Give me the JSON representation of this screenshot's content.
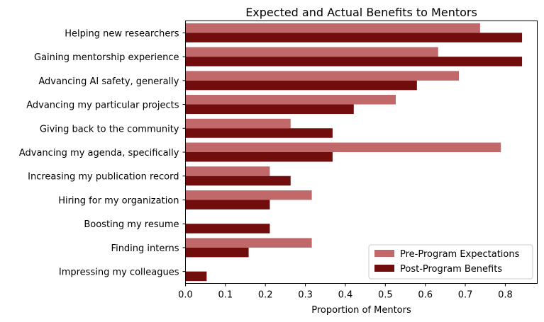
{
  "chart_data": {
    "type": "bar",
    "orientation": "horizontal",
    "title": "Expected and Actual Benefits to Mentors",
    "xlabel": "Proportion of Mentors",
    "ylabel": "",
    "xlim": [
      0.0,
      0.88
    ],
    "xticks": [
      "0.0",
      "0.1",
      "0.2",
      "0.3",
      "0.4",
      "0.5",
      "0.6",
      "0.7",
      "0.8"
    ],
    "categories": [
      "Helping new researchers",
      "Gaining mentorship experience",
      "Advancing AI safety, generally",
      "Advancing my particular projects",
      "Giving back to the community",
      "Advancing my agenda, specifically",
      "Increasing my publication record",
      "Hiring for my organization",
      "Boosting my resume",
      "Finding interns",
      "Impressing my colleagues"
    ],
    "series": [
      {
        "name": "Pre-Program Expectations",
        "color": "#c0686a",
        "values": [
          0.737,
          0.632,
          0.684,
          0.526,
          0.263,
          0.789,
          0.211,
          0.316,
          0.0,
          0.316,
          0.0
        ]
      },
      {
        "name": "Post-Program Benefits",
        "color": "#720d0e",
        "values": [
          0.842,
          0.842,
          0.579,
          0.421,
          0.368,
          0.368,
          0.263,
          0.211,
          0.211,
          0.158,
          0.053
        ]
      }
    ],
    "legend_position": "lower-right",
    "grid": false
  }
}
